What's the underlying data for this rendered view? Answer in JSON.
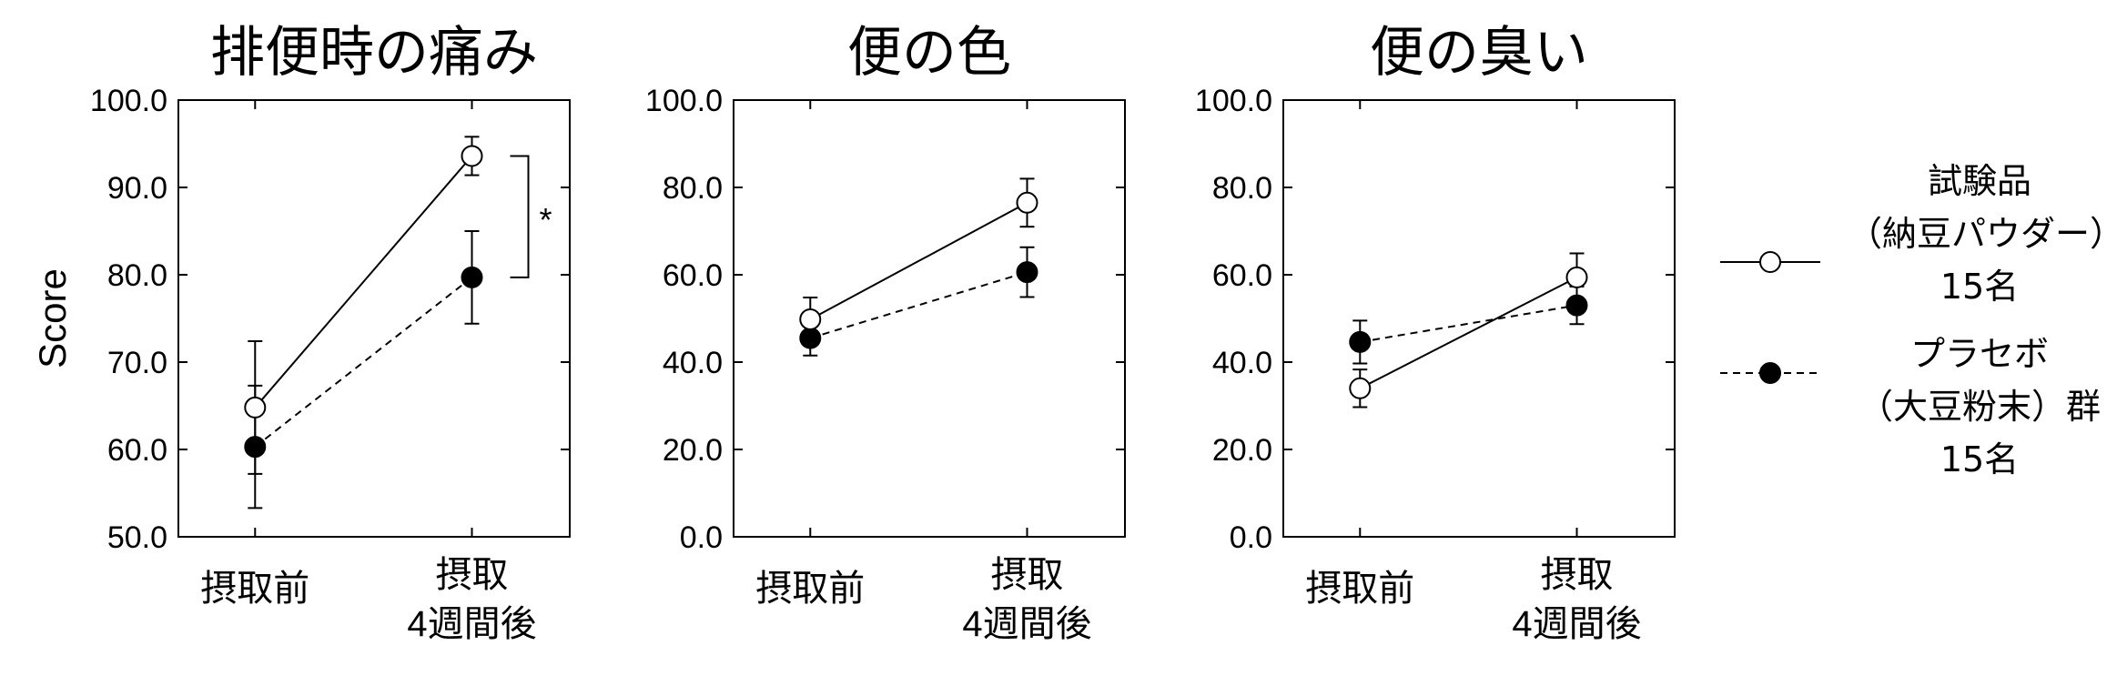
{
  "ylabel": "Score",
  "significance_mark": "*",
  "legend": {
    "entries": [
      {
        "lines": [
          "試験品",
          "（納豆パウダー）群",
          "15名"
        ],
        "marker": "open-circle",
        "line_style": "solid"
      },
      {
        "lines": [
          "プラセボ",
          "（大豆粉末）群",
          "15名"
        ],
        "marker": "filled-circle",
        "line_style": "dashed"
      }
    ]
  },
  "chart_data": [
    {
      "type": "line",
      "title": "排便時の痛み",
      "categories": [
        "摂取前",
        "摂取\n4週間後"
      ],
      "ylim": [
        50,
        100
      ],
      "yticks": [
        "50.0",
        "60.0",
        "70.0",
        "80.0",
        "90.0",
        "100.0"
      ],
      "series": [
        {
          "name": "試験品（納豆パウダー）群",
          "values": [
            64.8,
            93.6
          ],
          "errors": [
            7.6,
            2.2
          ],
          "marker": "open-circle",
          "line_style": "solid"
        },
        {
          "name": "プラセボ（大豆粉末）群",
          "values": [
            60.3,
            79.7
          ],
          "errors": [
            7.0,
            5.3
          ],
          "marker": "filled-circle",
          "line_style": "dashed"
        }
      ],
      "annotation": {
        "text": "*",
        "between_series_at_category": 1
      }
    },
    {
      "type": "line",
      "title": "便の色",
      "categories": [
        "摂取前",
        "摂取\n4週間後"
      ],
      "ylim": [
        0,
        100
      ],
      "yticks": [
        "0.0",
        "20.0",
        "40.0",
        "60.0",
        "80.0",
        "100.0"
      ],
      "series": [
        {
          "name": "試験品（納豆パウダー）群",
          "values": [
            49.8,
            76.5
          ],
          "errors": [
            5.0,
            5.5
          ],
          "marker": "open-circle",
          "line_style": "solid"
        },
        {
          "name": "プラセボ（大豆粉末）群",
          "values": [
            45.5,
            60.6
          ],
          "errors": [
            4.0,
            5.7
          ],
          "marker": "filled-circle",
          "line_style": "dashed"
        }
      ]
    },
    {
      "type": "line",
      "title": "便の臭い",
      "categories": [
        "摂取前",
        "摂取\n4週間後"
      ],
      "ylim": [
        0,
        100
      ],
      "yticks": [
        "0.0",
        "20.0",
        "40.0",
        "60.0",
        "80.0",
        "100.0"
      ],
      "series": [
        {
          "name": "試験品（納豆パウダー）群",
          "values": [
            34.0,
            59.4
          ],
          "errors": [
            4.3,
            5.5
          ],
          "marker": "open-circle",
          "line_style": "solid"
        },
        {
          "name": "プラセボ（大豆粉末）群",
          "values": [
            44.6,
            53.0
          ],
          "errors": [
            4.9,
            4.3
          ],
          "marker": "filled-circle",
          "line_style": "dashed"
        }
      ]
    }
  ]
}
